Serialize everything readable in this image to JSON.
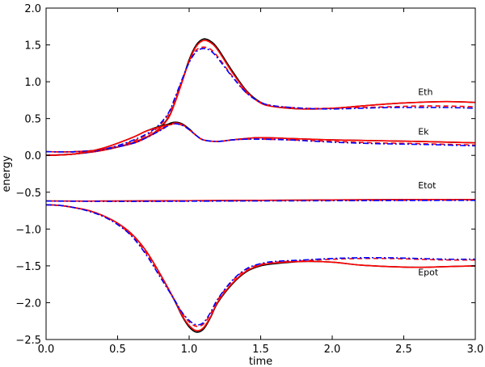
{
  "chart_data": {
    "type": "line",
    "title": "",
    "xlabel": "time",
    "ylabel": "energy",
    "xlim": [
      0.0,
      3.0
    ],
    "ylim": [
      -2.5,
      2.0
    ],
    "grid": false,
    "xticks": [
      {
        "value": 0.0,
        "label": "0.0"
      },
      {
        "value": 0.5,
        "label": "0.5"
      },
      {
        "value": 1.0,
        "label": "1.0"
      },
      {
        "value": 1.5,
        "label": "1.5"
      },
      {
        "value": 2.0,
        "label": "2.0"
      },
      {
        "value": 2.5,
        "label": "2.5"
      },
      {
        "value": 3.0,
        "label": "3.0"
      }
    ],
    "yticks": [
      {
        "value": 2.0,
        "label": "2.0"
      },
      {
        "value": 1.5,
        "label": "1.5"
      },
      {
        "value": 1.0,
        "label": "1.0"
      },
      {
        "value": 0.5,
        "label": "0.5"
      },
      {
        "value": 0.0,
        "label": "0.0"
      },
      {
        "value": -0.5,
        "label": "−0.5"
      },
      {
        "value": -1.0,
        "label": "−1.0"
      },
      {
        "value": -1.5,
        "label": "−1.5"
      },
      {
        "value": -2.0,
        "label": "−2.0"
      },
      {
        "value": -2.5,
        "label": "−2.5"
      }
    ],
    "line_styles": [
      {
        "key": "solid_black",
        "color": "#000000",
        "dash": "none"
      },
      {
        "key": "solid_red",
        "color": "#ff0000",
        "dash": "none"
      },
      {
        "key": "dashed_red",
        "color": "#ff0000",
        "dash": "6,4"
      },
      {
        "key": "dashdot_blue",
        "color": "#0000ff",
        "dash": "7,3,2,3"
      }
    ],
    "annotations": [
      {
        "text": "Eth",
        "x": 2.6,
        "y": 0.82
      },
      {
        "text": "Ek",
        "x": 2.6,
        "y": 0.28
      },
      {
        "text": "Etot",
        "x": 2.6,
        "y": -0.45
      },
      {
        "text": "Epot",
        "x": 2.6,
        "y": -1.63
      }
    ],
    "series": [
      {
        "group": "Eth",
        "style": "solid_black",
        "x": [
          0.0,
          0.2,
          0.4,
          0.6,
          0.75,
          0.85,
          0.9,
          0.95,
          1.0,
          1.05,
          1.1,
          1.15,
          1.2,
          1.3,
          1.4,
          1.5,
          1.6,
          1.8,
          2.0,
          2.2,
          2.4,
          2.6,
          2.8,
          3.0
        ],
        "y": [
          0.0,
          0.02,
          0.07,
          0.17,
          0.3,
          0.5,
          0.72,
          1.0,
          1.3,
          1.5,
          1.58,
          1.55,
          1.45,
          1.15,
          0.88,
          0.72,
          0.66,
          0.63,
          0.64,
          0.67,
          0.7,
          0.72,
          0.73,
          0.72
        ]
      },
      {
        "group": "Eth",
        "style": "solid_red",
        "x": [
          0.0,
          0.2,
          0.4,
          0.6,
          0.75,
          0.85,
          0.9,
          0.95,
          1.0,
          1.05,
          1.1,
          1.15,
          1.2,
          1.3,
          1.4,
          1.5,
          1.6,
          1.8,
          2.0,
          2.2,
          2.4,
          2.6,
          2.8,
          3.0
        ],
        "y": [
          0.0,
          0.02,
          0.07,
          0.17,
          0.3,
          0.49,
          0.71,
          0.99,
          1.28,
          1.48,
          1.56,
          1.53,
          1.43,
          1.13,
          0.87,
          0.71,
          0.66,
          0.63,
          0.64,
          0.67,
          0.7,
          0.72,
          0.73,
          0.72
        ]
      },
      {
        "group": "Eth",
        "style": "dashed_red",
        "x": [
          0.0,
          0.2,
          0.4,
          0.6,
          0.75,
          0.85,
          0.9,
          0.95,
          1.0,
          1.05,
          1.1,
          1.15,
          1.2,
          1.3,
          1.4,
          1.5,
          1.6,
          1.8,
          2.0,
          2.2,
          2.4,
          2.6,
          2.8,
          3.0
        ],
        "y": [
          0.0,
          0.02,
          0.08,
          0.19,
          0.33,
          0.54,
          0.76,
          1.02,
          1.27,
          1.43,
          1.47,
          1.44,
          1.34,
          1.08,
          0.85,
          0.72,
          0.67,
          0.64,
          0.64,
          0.65,
          0.66,
          0.67,
          0.67,
          0.66
        ]
      },
      {
        "group": "Eth",
        "style": "dashdot_blue",
        "x": [
          0.0,
          0.2,
          0.4,
          0.6,
          0.75,
          0.85,
          0.9,
          0.95,
          1.0,
          1.05,
          1.1,
          1.15,
          1.2,
          1.3,
          1.4,
          1.5,
          1.6,
          1.8,
          2.0,
          2.2,
          2.4,
          2.6,
          2.8,
          3.0
        ],
        "y": [
          0.0,
          0.02,
          0.08,
          0.2,
          0.35,
          0.56,
          0.78,
          1.03,
          1.26,
          1.41,
          1.45,
          1.42,
          1.32,
          1.07,
          0.85,
          0.72,
          0.67,
          0.64,
          0.63,
          0.64,
          0.65,
          0.65,
          0.65,
          0.64
        ]
      },
      {
        "group": "Ek",
        "style": "solid_black",
        "x": [
          0.0,
          0.2,
          0.4,
          0.6,
          0.7,
          0.8,
          0.85,
          0.9,
          0.95,
          1.0,
          1.05,
          1.1,
          1.2,
          1.3,
          1.4,
          1.5,
          1.7,
          2.0,
          2.3,
          2.6,
          3.0
        ],
        "y": [
          0.05,
          0.05,
          0.08,
          0.16,
          0.24,
          0.35,
          0.42,
          0.45,
          0.43,
          0.36,
          0.27,
          0.21,
          0.19,
          0.21,
          0.23,
          0.24,
          0.23,
          0.21,
          0.2,
          0.19,
          0.17
        ]
      },
      {
        "group": "Ek",
        "style": "solid_red",
        "x": [
          0.0,
          0.2,
          0.4,
          0.6,
          0.7,
          0.8,
          0.85,
          0.9,
          0.95,
          1.0,
          1.05,
          1.1,
          1.2,
          1.3,
          1.4,
          1.5,
          1.7,
          2.0,
          2.3,
          2.6,
          3.0
        ],
        "y": [
          0.05,
          0.05,
          0.08,
          0.16,
          0.24,
          0.35,
          0.41,
          0.44,
          0.42,
          0.35,
          0.27,
          0.21,
          0.19,
          0.21,
          0.23,
          0.24,
          0.23,
          0.21,
          0.2,
          0.19,
          0.17
        ]
      },
      {
        "group": "Ek",
        "style": "dashed_red",
        "x": [
          0.0,
          0.2,
          0.4,
          0.6,
          0.7,
          0.8,
          0.85,
          0.9,
          0.95,
          1.0,
          1.05,
          1.1,
          1.2,
          1.3,
          1.4,
          1.5,
          1.7,
          2.0,
          2.3,
          2.6,
          3.0
        ],
        "y": [
          0.05,
          0.05,
          0.08,
          0.16,
          0.24,
          0.35,
          0.41,
          0.43,
          0.41,
          0.35,
          0.27,
          0.21,
          0.19,
          0.21,
          0.22,
          0.22,
          0.21,
          0.19,
          0.17,
          0.16,
          0.14
        ]
      },
      {
        "group": "Ek",
        "style": "dashdot_blue",
        "x": [
          0.0,
          0.2,
          0.4,
          0.6,
          0.7,
          0.8,
          0.85,
          0.9,
          0.95,
          1.0,
          1.05,
          1.1,
          1.2,
          1.3,
          1.4,
          1.5,
          1.7,
          2.0,
          2.3,
          2.6,
          3.0
        ],
        "y": [
          0.05,
          0.05,
          0.08,
          0.16,
          0.24,
          0.34,
          0.4,
          0.43,
          0.41,
          0.35,
          0.27,
          0.21,
          0.19,
          0.21,
          0.22,
          0.22,
          0.21,
          0.18,
          0.16,
          0.15,
          0.13
        ]
      },
      {
        "group": "Ek2",
        "style": "solid_black",
        "x": [
          0.0,
          0.2,
          0.4,
          0.6,
          0.7,
          0.8,
          0.85,
          0.88
        ],
        "y": [
          0.0,
          0.02,
          0.1,
          0.24,
          0.33,
          0.4,
          0.42,
          0.43
        ]
      },
      {
        "group": "Ek2",
        "style": "solid_red",
        "x": [
          0.0,
          0.2,
          0.4,
          0.6,
          0.7,
          0.8,
          0.85,
          0.88
        ],
        "y": [
          0.0,
          0.02,
          0.1,
          0.24,
          0.33,
          0.39,
          0.41,
          0.42
        ]
      },
      {
        "group": "Etot",
        "style": "solid_black",
        "x": [
          0.0,
          0.5,
          1.0,
          1.5,
          2.0,
          2.5,
          3.0
        ],
        "y": [
          -0.62,
          -0.62,
          -0.615,
          -0.61,
          -0.605,
          -0.6,
          -0.6
        ]
      },
      {
        "group": "Etot",
        "style": "solid_red",
        "x": [
          0.0,
          0.5,
          1.0,
          1.5,
          2.0,
          2.5,
          3.0
        ],
        "y": [
          -0.62,
          -0.62,
          -0.615,
          -0.61,
          -0.605,
          -0.6,
          -0.6
        ]
      },
      {
        "group": "Etot",
        "style": "dashed_red",
        "x": [
          0.0,
          0.5,
          1.0,
          1.5,
          2.0,
          2.5,
          3.0
        ],
        "y": [
          -0.62,
          -0.622,
          -0.62,
          -0.615,
          -0.61,
          -0.61,
          -0.605
        ]
      },
      {
        "group": "Etot",
        "style": "dashdot_blue",
        "x": [
          0.0,
          0.5,
          1.0,
          1.5,
          2.0,
          2.5,
          3.0
        ],
        "y": [
          -0.62,
          -0.625,
          -0.622,
          -0.618,
          -0.615,
          -0.612,
          -0.61
        ]
      },
      {
        "group": "Epot",
        "style": "solid_black",
        "x": [
          0.0,
          0.1,
          0.2,
          0.3,
          0.4,
          0.5,
          0.6,
          0.7,
          0.8,
          0.9,
          0.95,
          1.0,
          1.05,
          1.1,
          1.15,
          1.2,
          1.3,
          1.4,
          1.5,
          1.6,
          1.8,
          2.0,
          2.2,
          2.4,
          2.6,
          2.8,
          3.0
        ],
        "y": [
          -0.67,
          -0.68,
          -0.71,
          -0.75,
          -0.82,
          -0.92,
          -1.07,
          -1.3,
          -1.62,
          -1.98,
          -2.18,
          -2.33,
          -2.4,
          -2.36,
          -2.2,
          -2.0,
          -1.75,
          -1.58,
          -1.5,
          -1.47,
          -1.44,
          -1.45,
          -1.49,
          -1.51,
          -1.52,
          -1.51,
          -1.5
        ]
      },
      {
        "group": "Epot",
        "style": "solid_red",
        "x": [
          0.0,
          0.1,
          0.2,
          0.3,
          0.4,
          0.5,
          0.6,
          0.7,
          0.8,
          0.9,
          0.95,
          1.0,
          1.05,
          1.1,
          1.15,
          1.2,
          1.3,
          1.4,
          1.5,
          1.6,
          1.8,
          2.0,
          2.2,
          2.4,
          2.6,
          2.8,
          3.0
        ],
        "y": [
          -0.67,
          -0.68,
          -0.71,
          -0.75,
          -0.82,
          -0.92,
          -1.07,
          -1.3,
          -1.62,
          -1.97,
          -2.17,
          -2.31,
          -2.38,
          -2.34,
          -2.19,
          -1.99,
          -1.74,
          -1.57,
          -1.49,
          -1.46,
          -1.44,
          -1.45,
          -1.49,
          -1.51,
          -1.52,
          -1.51,
          -1.5
        ]
      },
      {
        "group": "Epot",
        "style": "dashed_red",
        "x": [
          0.0,
          0.1,
          0.2,
          0.3,
          0.4,
          0.5,
          0.6,
          0.7,
          0.8,
          0.9,
          0.95,
          1.0,
          1.05,
          1.1,
          1.15,
          1.2,
          1.3,
          1.4,
          1.5,
          1.6,
          1.8,
          2.0,
          2.2,
          2.4,
          2.6,
          2.8,
          3.0
        ],
        "y": [
          -0.67,
          -0.68,
          -0.71,
          -0.75,
          -0.82,
          -0.93,
          -1.09,
          -1.33,
          -1.64,
          -1.97,
          -2.14,
          -2.26,
          -2.32,
          -2.29,
          -2.15,
          -1.96,
          -1.71,
          -1.55,
          -1.48,
          -1.45,
          -1.43,
          -1.41,
          -1.4,
          -1.4,
          -1.41,
          -1.42,
          -1.42
        ]
      },
      {
        "group": "Epot",
        "style": "dashdot_blue",
        "x": [
          0.0,
          0.1,
          0.2,
          0.3,
          0.4,
          0.5,
          0.6,
          0.7,
          0.8,
          0.9,
          0.95,
          1.0,
          1.05,
          1.1,
          1.15,
          1.2,
          1.3,
          1.4,
          1.5,
          1.6,
          1.8,
          2.0,
          2.2,
          2.4,
          2.6,
          2.8,
          3.0
        ],
        "y": [
          -0.67,
          -0.68,
          -0.71,
          -0.76,
          -0.83,
          -0.94,
          -1.1,
          -1.35,
          -1.66,
          -1.97,
          -2.13,
          -2.24,
          -2.3,
          -2.27,
          -2.13,
          -1.95,
          -1.7,
          -1.54,
          -1.47,
          -1.44,
          -1.42,
          -1.4,
          -1.39,
          -1.39,
          -1.4,
          -1.41,
          -1.41
        ]
      }
    ]
  }
}
